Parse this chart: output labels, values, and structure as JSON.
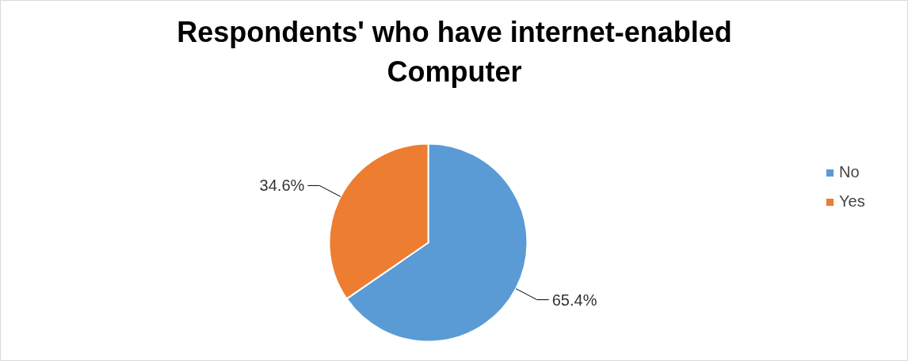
{
  "chart_data": {
    "type": "pie",
    "title": "Respondents' who have internet-enabled Computer",
    "categories": [
      "No",
      "Yes"
    ],
    "values": [
      65.4,
      34.6
    ],
    "colors": [
      "#5b9bd5",
      "#ed7d31"
    ],
    "value_labels": [
      "65.4%",
      "34.6%"
    ],
    "legend": "right"
  }
}
